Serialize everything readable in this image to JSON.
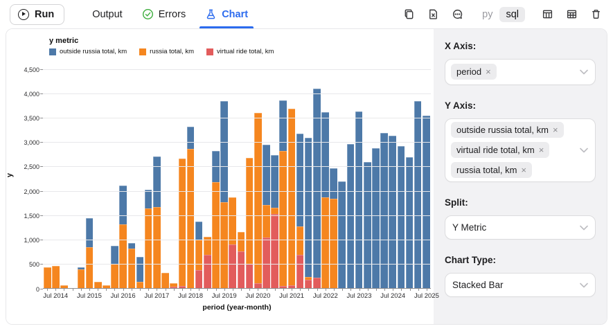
{
  "toolbar": {
    "run_label": "Run",
    "tabs": [
      {
        "label": "Output",
        "active": false
      },
      {
        "label": "Errors",
        "active": false
      },
      {
        "label": "Chart",
        "active": true
      }
    ],
    "lang_toggle": {
      "options": [
        "py",
        "sql"
      ],
      "selected": "sql"
    },
    "icon_names": [
      "copy-icon",
      "export-file-icon",
      "comments-icon",
      "table-view-icon",
      "table-grid-icon",
      "delete-icon"
    ]
  },
  "chart": {
    "legend_title": "y metric",
    "y_axis_title": "y",
    "x_axis_title": "period (year-month)",
    "y_tick_labels": [
      "0",
      "500",
      "1,000",
      "1,500",
      "2,000",
      "2,500",
      "3,000",
      "3,500",
      "4,000",
      "4,500"
    ],
    "chart_data": {
      "type": "bar",
      "stacked": true,
      "title": "y metric",
      "xlabel": "period (year-month)",
      "ylabel": "y",
      "ylim": [
        0,
        4500
      ],
      "grid": true,
      "legend_position": "top-left",
      "bar_count": 46,
      "x_tick_labels": [
        "Jul 2014",
        "Jul 2015",
        "Jul 2016",
        "Jul 2017",
        "Jul 2018",
        "Jul 2019",
        "Jul 2020",
        "Jul 2021",
        "Jul 2022",
        "Jul 2023",
        "Jul 2024",
        "Jul 2025"
      ],
      "x_label_bar_indices": [
        1,
        5,
        9,
        13,
        17,
        21,
        25,
        29,
        33,
        37,
        41,
        45
      ],
      "stack_order_bottom_to_top": [
        "virtual ride total, km",
        "russia total, km",
        "outside russia total, km"
      ],
      "series": [
        {
          "name": "virtual ride total, km",
          "color": "#e25c5c",
          "values": [
            0,
            0,
            0,
            0,
            0,
            0,
            0,
            0,
            0,
            0,
            0,
            0,
            0,
            0,
            0,
            35,
            40,
            0,
            370,
            680,
            0,
            0,
            895,
            760,
            500,
            95,
            1040,
            1525,
            50,
            60,
            680,
            170,
            210,
            0,
            0,
            0,
            0,
            0,
            0,
            0,
            0,
            0,
            0,
            0,
            0,
            0
          ]
        },
        {
          "name": "russia total, km",
          "color": "#f5861f",
          "values": [
            430,
            450,
            55,
            0,
            390,
            840,
            125,
            55,
            500,
            1300,
            805,
            125,
            1640,
            1660,
            310,
            60,
            2620,
            2860,
            620,
            370,
            2170,
            1760,
            970,
            390,
            2170,
            3490,
            670,
            120,
            2760,
            3620,
            590,
            60,
            0,
            1865,
            1830,
            0,
            0,
            0,
            0,
            0,
            0,
            0,
            0,
            0,
            0,
            0
          ]
        },
        {
          "name": "outside russia total, km",
          "color": "#4d79a8",
          "values": [
            0,
            0,
            0,
            0,
            40,
            590,
            0,
            0,
            360,
            800,
            120,
            510,
            380,
            1040,
            0,
            0,
            0,
            450,
            370,
            0,
            640,
            2070,
            0,
            0,
            0,
            0,
            1230,
            1080,
            1040,
            0,
            1900,
            2850,
            3880,
            1740,
            630,
            2185,
            2950,
            3620,
            2590,
            2870,
            3180,
            3130,
            2910,
            2690,
            3830,
            3530
          ]
        }
      ]
    },
    "legend_order": [
      "outside russia total, km",
      "russia total, km",
      "virtual ride total, km"
    ]
  },
  "panel": {
    "x_axis": {
      "label": "X Axis:",
      "tags": [
        "period"
      ]
    },
    "y_axis": {
      "label": "Y Axis:",
      "tags": [
        "outside russia total, km",
        "virtual ride total, km",
        "russia total, km"
      ]
    },
    "split": {
      "label": "Split:",
      "value": "Y Metric"
    },
    "chart_type": {
      "label": "Chart Type:",
      "value": "Stacked Bar"
    }
  }
}
